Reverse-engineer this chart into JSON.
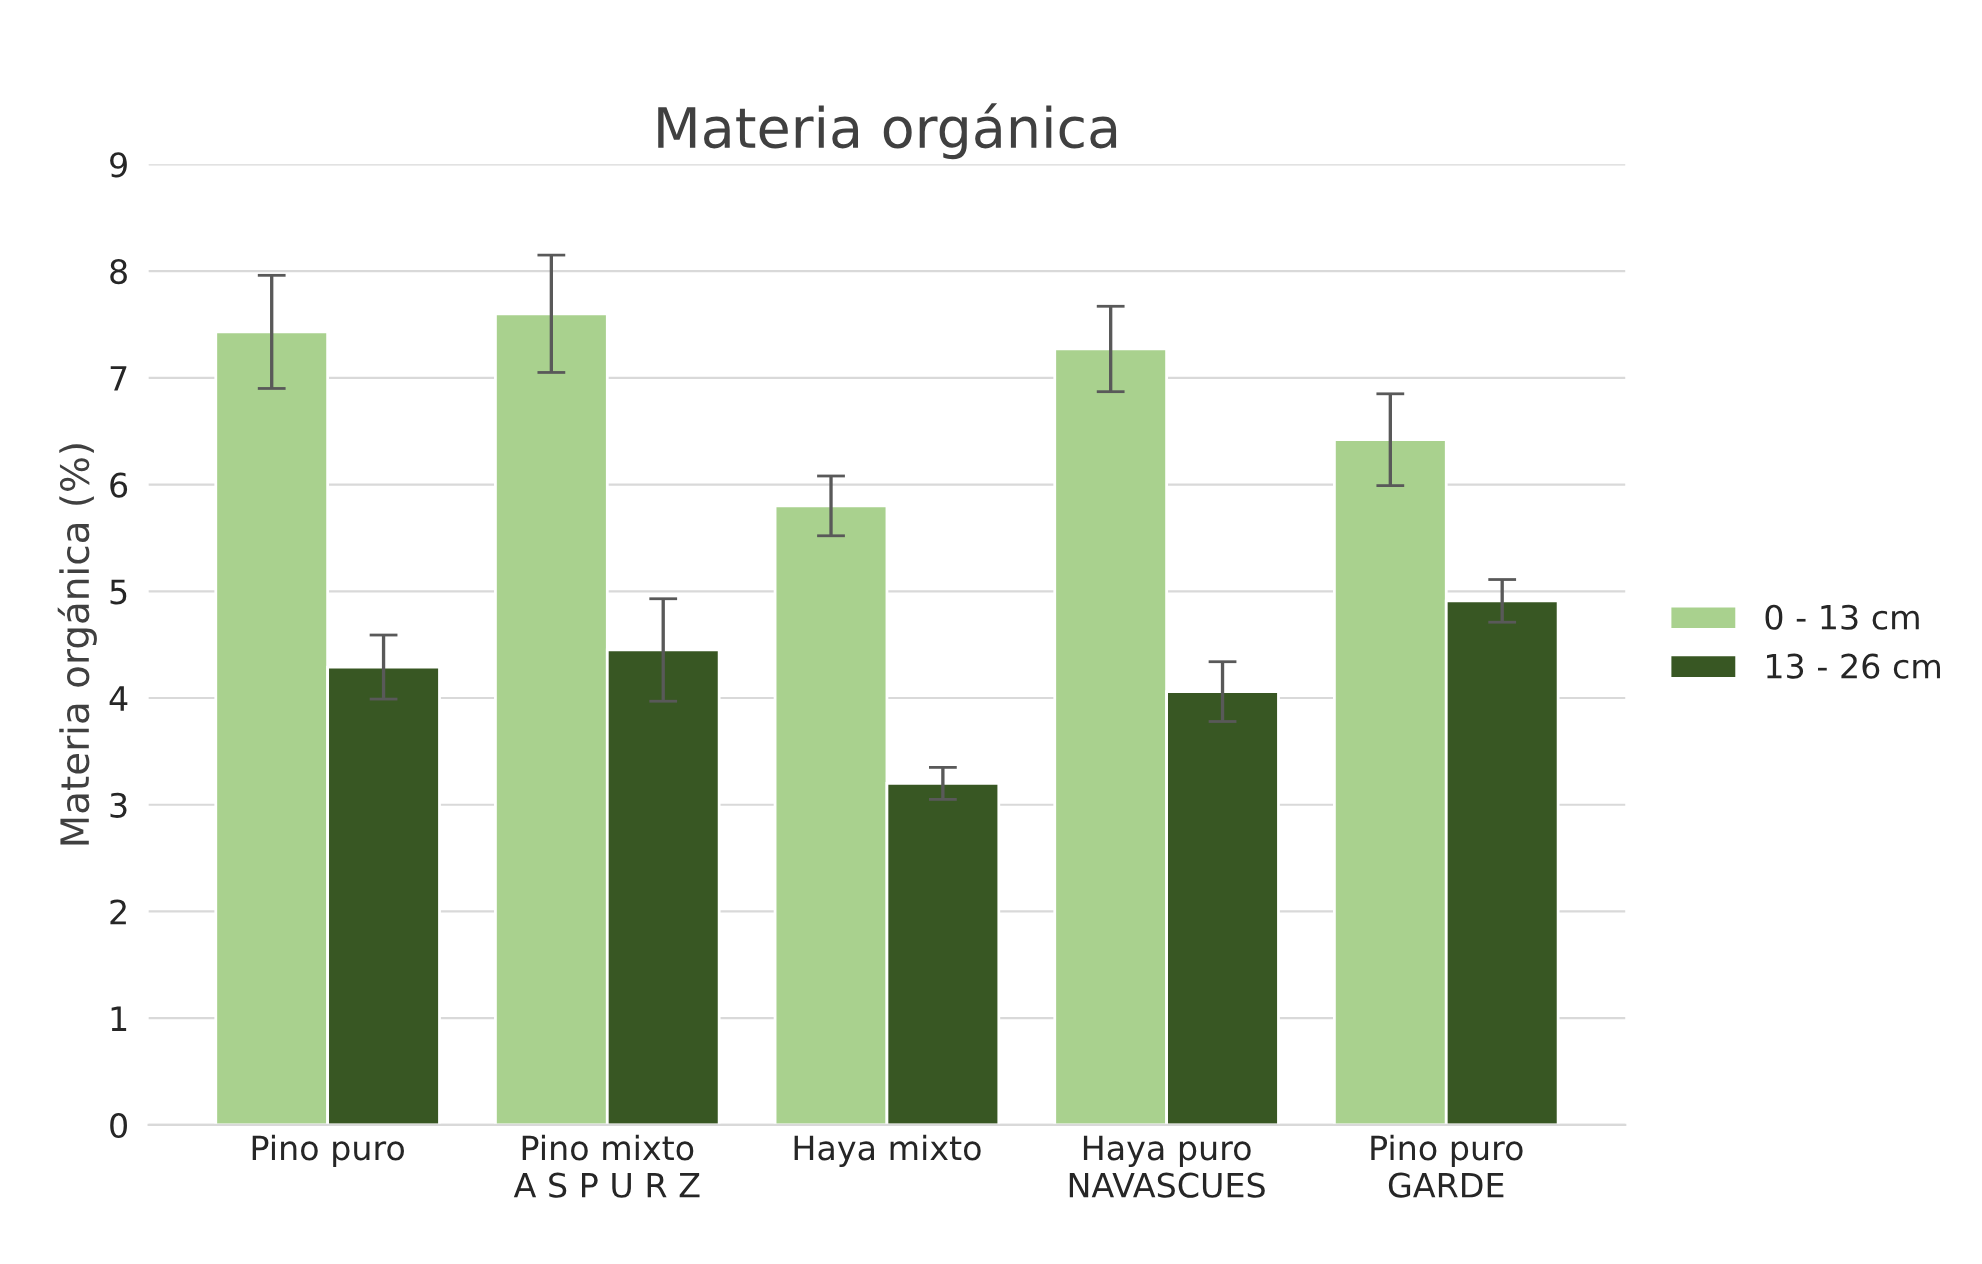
{
  "chart_data": {
    "type": "bar",
    "title": "Materia orgánica",
    "ylabel": "Materia orgánica (%)",
    "categories": [
      "Pino puro",
      "Pino mixto\nA S P U R Z",
      "Haya mixto",
      "Haya puro\nNAVASCUES",
      "Pino puro\nGARDE"
    ],
    "series": [
      {
        "name": "0 - 13 cm",
        "color": "#a9d18e",
        "values": [
          7.43,
          7.6,
          5.8,
          7.27,
          6.42
        ],
        "errors": [
          0.53,
          0.55,
          0.28,
          0.4,
          0.43
        ]
      },
      {
        "name": "13 - 26 cm",
        "color": "#385723",
        "values": [
          4.29,
          4.45,
          3.2,
          4.06,
          4.91
        ],
        "errors": [
          0.3,
          0.48,
          0.15,
          0.28,
          0.2
        ]
      }
    ],
    "ylim": [
      0,
      9
    ],
    "yticks": [
      0,
      1,
      2,
      3,
      4,
      5,
      6,
      7,
      8,
      9
    ],
    "grid": "y",
    "legend": "right"
  }
}
